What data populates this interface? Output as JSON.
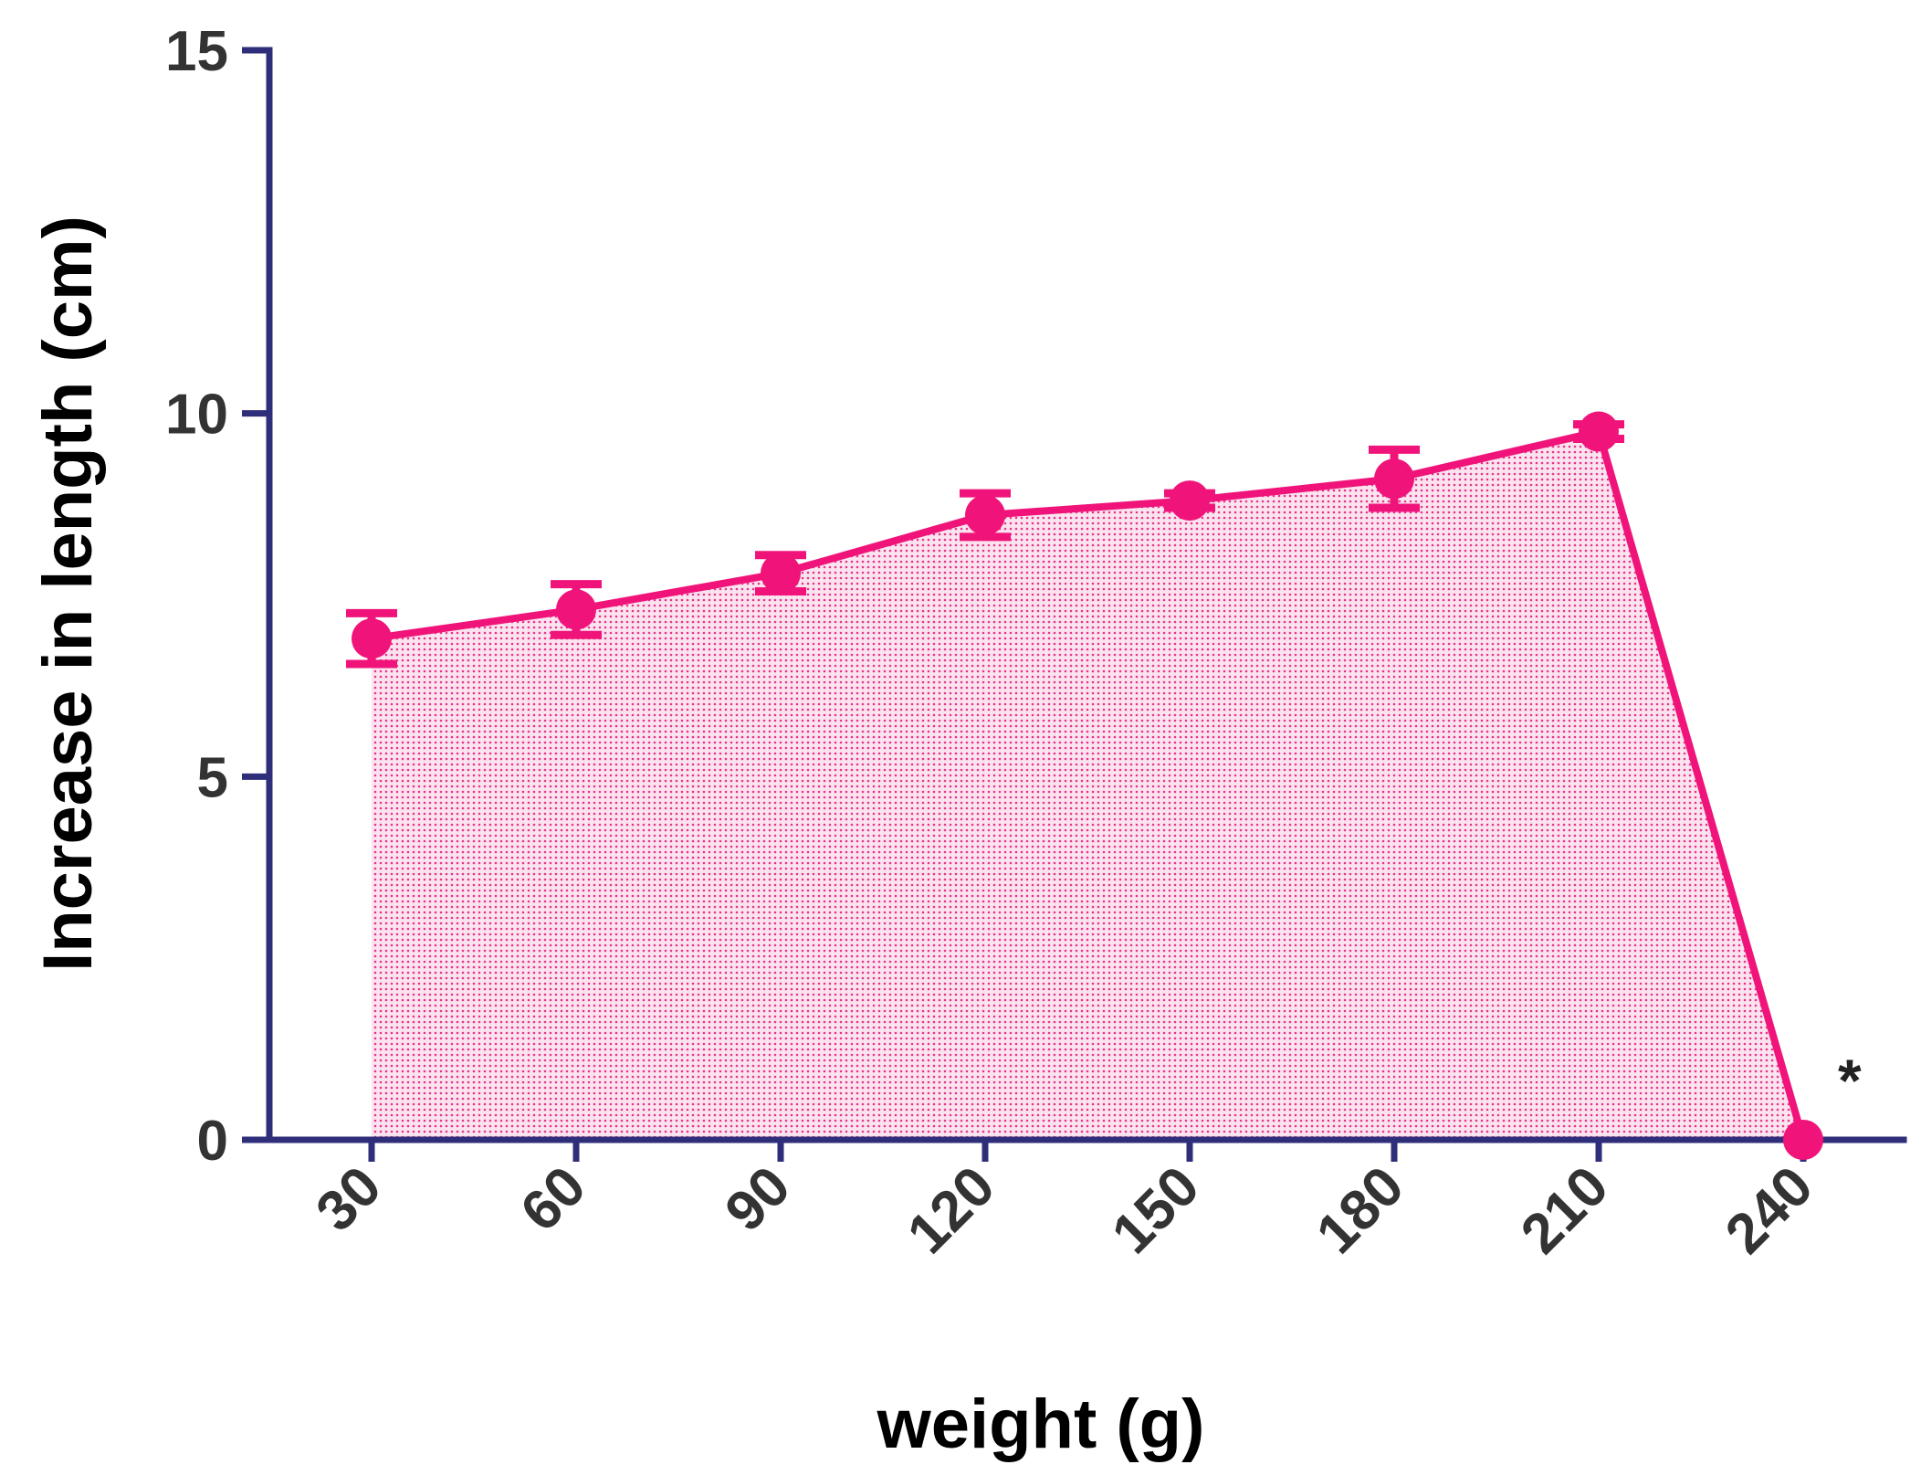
{
  "chart_data": {
    "type": "line",
    "xlabel": "weight (g)",
    "ylabel": "Increase in length (cm)",
    "ylim": [
      0,
      15
    ],
    "yticks": [
      0,
      5,
      10,
      15
    ],
    "x": [
      30,
      60,
      90,
      120,
      150,
      180,
      210,
      240
    ],
    "x_tick_labels": [
      "30",
      "60",
      "90",
      "120",
      "150",
      "180",
      "210",
      "240"
    ],
    "y_tick_labels": [
      "0",
      "5",
      "10",
      "15"
    ],
    "series": [
      {
        "values": [
          6.9,
          7.3,
          7.8,
          8.6,
          8.8,
          9.1,
          9.75,
          0
        ],
        "error": [
          0.35,
          0.35,
          0.25,
          0.3,
          0.1,
          0.4,
          0.1,
          0
        ],
        "color": "#f0147a",
        "fill": "shaded area under line"
      }
    ],
    "annotations": [
      {
        "text": "*",
        "x": 240
      }
    ],
    "grid": false,
    "legend": "none",
    "axis_color": "#2e2e7a"
  }
}
